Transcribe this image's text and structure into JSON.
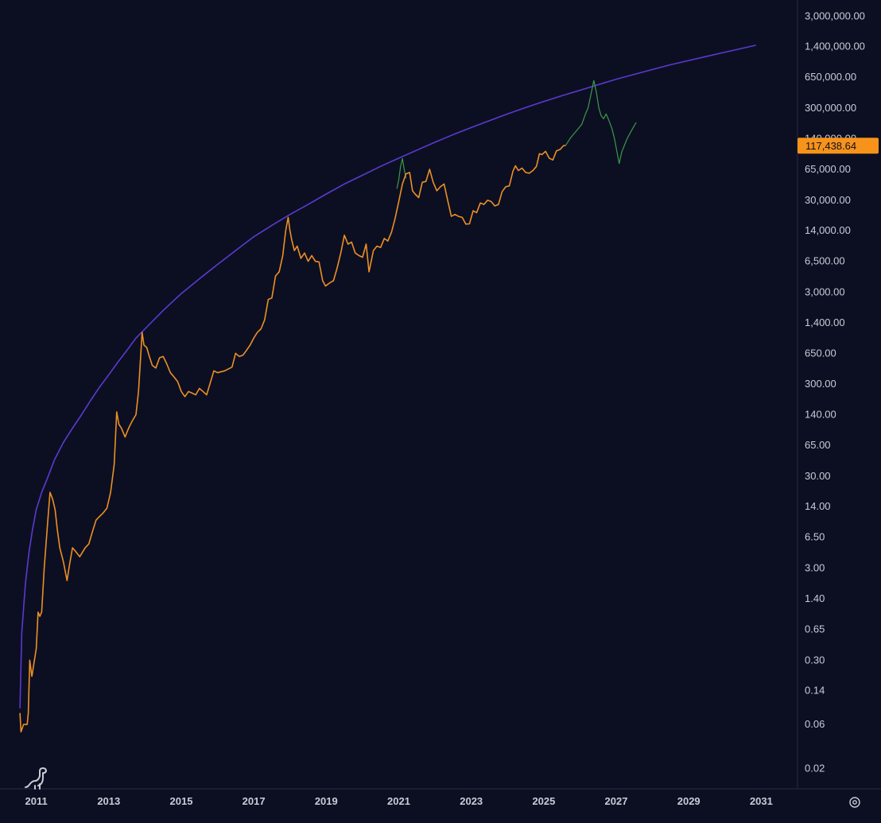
{
  "colors": {
    "background": "#0c0f22",
    "price_line": "#ed8f24",
    "projection_line": "#3c9a4a",
    "curve_line": "#5a3ad0",
    "axis_text": "#c9cbd6",
    "divider": "#2a2d3e",
    "price_tag_bg": "#f7931a",
    "price_tag_text": "#0c0f22"
  },
  "ui": {
    "logo_icon": "dinosaur-logo-icon",
    "settings_icon": "gear-icon"
  },
  "chart_data": {
    "type": "line",
    "title": "",
    "xlabel": "",
    "ylabel": "",
    "y_scale": "log",
    "grid": false,
    "legend": "none",
    "xlim": [
      2010.0,
      2032.0
    ],
    "ylim": [
      0.012,
      4500000
    ],
    "x_tick_labels": [
      "2011",
      "2013",
      "2015",
      "2017",
      "2019",
      "2021",
      "2023",
      "2025",
      "2027",
      "2029",
      "2031"
    ],
    "y_tick_labels": [
      "3,000,000.00",
      "1,400,000.00",
      "650,000.00",
      "300,000.00",
      "140,000.00",
      "65,000.00",
      "30,000.00",
      "14,000.00",
      "6,500.00",
      "3,000.00",
      "1,400.00",
      "650.00",
      "300.00",
      "140.00",
      "65.00",
      "30.00",
      "14.00",
      "6.50",
      "3.00",
      "1.40",
      "0.65",
      "0.30",
      "0.14",
      "0.06",
      "0.02"
    ],
    "last_price_label": "117,438.64",
    "last_price_value": 117438.64,
    "series": [
      {
        "kind": "price",
        "points": [
          [
            2010.55,
            0.08
          ],
          [
            2010.58,
            0.05
          ],
          [
            2010.65,
            0.06
          ],
          [
            2010.75,
            0.06
          ],
          [
            2010.78,
            0.08
          ],
          [
            2010.82,
            0.3
          ],
          [
            2010.88,
            0.2
          ],
          [
            2010.95,
            0.3
          ],
          [
            2011.0,
            0.4
          ],
          [
            2011.05,
            1.0
          ],
          [
            2011.1,
            0.9
          ],
          [
            2011.15,
            1.0
          ],
          [
            2011.22,
            3.0
          ],
          [
            2011.3,
            8.0
          ],
          [
            2011.38,
            20.0
          ],
          [
            2011.45,
            17.0
          ],
          [
            2011.52,
            13.0
          ],
          [
            2011.58,
            8.0
          ],
          [
            2011.65,
            5.0
          ],
          [
            2011.75,
            3.5
          ],
          [
            2011.85,
            2.2
          ],
          [
            2011.92,
            3.3
          ],
          [
            2012.0,
            5.0
          ],
          [
            2012.1,
            4.5
          ],
          [
            2012.2,
            4.0
          ],
          [
            2012.35,
            5.0
          ],
          [
            2012.45,
            5.5
          ],
          [
            2012.55,
            7.5
          ],
          [
            2012.65,
            10.0
          ],
          [
            2012.75,
            11.0
          ],
          [
            2012.85,
            12.0
          ],
          [
            2012.95,
            13.5
          ],
          [
            2013.05,
            20.0
          ],
          [
            2013.15,
            40.0
          ],
          [
            2013.22,
            150.0
          ],
          [
            2013.28,
            110.0
          ],
          [
            2013.35,
            100.0
          ],
          [
            2013.45,
            80.0
          ],
          [
            2013.55,
            100.0
          ],
          [
            2013.65,
            120.0
          ],
          [
            2013.75,
            140.0
          ],
          [
            2013.82,
            250.0
          ],
          [
            2013.88,
            600.0
          ],
          [
            2013.92,
            1100.0
          ],
          [
            2013.97,
            800.0
          ],
          [
            2014.05,
            750.0
          ],
          [
            2014.12,
            600.0
          ],
          [
            2014.2,
            480.0
          ],
          [
            2014.3,
            450.0
          ],
          [
            2014.4,
            580.0
          ],
          [
            2014.5,
            600.0
          ],
          [
            2014.6,
            500.0
          ],
          [
            2014.7,
            400.0
          ],
          [
            2014.8,
            360.0
          ],
          [
            2014.9,
            320.0
          ],
          [
            2015.0,
            250.0
          ],
          [
            2015.1,
            220.0
          ],
          [
            2015.2,
            250.0
          ],
          [
            2015.3,
            240.0
          ],
          [
            2015.4,
            230.0
          ],
          [
            2015.5,
            270.0
          ],
          [
            2015.6,
            250.0
          ],
          [
            2015.7,
            230.0
          ],
          [
            2015.8,
            310.0
          ],
          [
            2015.9,
            420.0
          ],
          [
            2016.0,
            400.0
          ],
          [
            2016.2,
            420.0
          ],
          [
            2016.4,
            460.0
          ],
          [
            2016.5,
            650.0
          ],
          [
            2016.6,
            600.0
          ],
          [
            2016.7,
            620.0
          ],
          [
            2016.8,
            700.0
          ],
          [
            2016.9,
            800.0
          ],
          [
            2017.0,
            950.0
          ],
          [
            2017.1,
            1100.0
          ],
          [
            2017.2,
            1200.0
          ],
          [
            2017.3,
            1500.0
          ],
          [
            2017.4,
            2500.0
          ],
          [
            2017.5,
            2600.0
          ],
          [
            2017.6,
            4500.0
          ],
          [
            2017.7,
            5000.0
          ],
          [
            2017.8,
            7500.0
          ],
          [
            2017.88,
            14000.0
          ],
          [
            2017.95,
            19500.0
          ],
          [
            2018.0,
            14000.0
          ],
          [
            2018.05,
            11000.0
          ],
          [
            2018.12,
            8500.0
          ],
          [
            2018.2,
            9500.0
          ],
          [
            2018.3,
            7000.0
          ],
          [
            2018.4,
            8000.0
          ],
          [
            2018.5,
            6500.0
          ],
          [
            2018.6,
            7500.0
          ],
          [
            2018.7,
            6500.0
          ],
          [
            2018.8,
            6400.0
          ],
          [
            2018.9,
            4000.0
          ],
          [
            2018.98,
            3500.0
          ],
          [
            2019.1,
            3800.0
          ],
          [
            2019.2,
            4000.0
          ],
          [
            2019.3,
            5500.0
          ],
          [
            2019.4,
            8000.0
          ],
          [
            2019.5,
            12500.0
          ],
          [
            2019.6,
            10000.0
          ],
          [
            2019.7,
            10500.0
          ],
          [
            2019.8,
            8000.0
          ],
          [
            2019.9,
            7500.0
          ],
          [
            2020.0,
            7200.0
          ],
          [
            2020.1,
            10000.0
          ],
          [
            2020.18,
            5000.0
          ],
          [
            2020.3,
            8500.0
          ],
          [
            2020.4,
            9500.0
          ],
          [
            2020.5,
            9200.0
          ],
          [
            2020.6,
            11500.0
          ],
          [
            2020.7,
            10800.0
          ],
          [
            2020.8,
            13500.0
          ],
          [
            2020.9,
            19000.0
          ],
          [
            2021.0,
            29000.0
          ],
          [
            2021.1,
            45000.0
          ],
          [
            2021.2,
            58000.0
          ],
          [
            2021.3,
            60000.0
          ],
          [
            2021.38,
            38000.0
          ],
          [
            2021.45,
            35000.0
          ],
          [
            2021.55,
            32000.0
          ],
          [
            2021.65,
            47000.0
          ],
          [
            2021.75,
            48000.0
          ],
          [
            2021.85,
            65000.0
          ],
          [
            2021.95,
            47000.0
          ],
          [
            2022.05,
            38000.0
          ],
          [
            2022.15,
            42000.0
          ],
          [
            2022.25,
            45000.0
          ],
          [
            2022.35,
            30000.0
          ],
          [
            2022.45,
            20000.0
          ],
          [
            2022.55,
            21000.0
          ],
          [
            2022.65,
            20000.0
          ],
          [
            2022.75,
            19500.0
          ],
          [
            2022.85,
            16500.0
          ],
          [
            2022.95,
            16600.0
          ],
          [
            2023.05,
            23000.0
          ],
          [
            2023.15,
            22000.0
          ],
          [
            2023.25,
            28000.0
          ],
          [
            2023.35,
            27000.0
          ],
          [
            2023.45,
            30000.0
          ],
          [
            2023.55,
            29000.0
          ],
          [
            2023.65,
            26000.0
          ],
          [
            2023.75,
            27000.0
          ],
          [
            2023.85,
            37000.0
          ],
          [
            2023.95,
            42000.0
          ],
          [
            2024.05,
            43000.0
          ],
          [
            2024.15,
            62000.0
          ],
          [
            2024.22,
            71000.0
          ],
          [
            2024.3,
            63000.0
          ],
          [
            2024.4,
            67000.0
          ],
          [
            2024.5,
            60000.0
          ],
          [
            2024.6,
            59000.0
          ],
          [
            2024.7,
            63000.0
          ],
          [
            2024.8,
            70000.0
          ],
          [
            2024.88,
            96000.0
          ],
          [
            2024.95,
            94000.0
          ],
          [
            2025.05,
            102000.0
          ],
          [
            2025.15,
            86000.0
          ],
          [
            2025.25,
            82000.0
          ],
          [
            2025.35,
            103000.0
          ],
          [
            2025.45,
            107000.0
          ],
          [
            2025.55,
            118000.0
          ],
          [
            2025.6,
            117438.64
          ]
        ]
      },
      {
        "kind": "projection",
        "points": [
          [
            2025.6,
            117438.64
          ],
          [
            2025.75,
            145000.0
          ],
          [
            2025.9,
            170000.0
          ],
          [
            2026.05,
            200000.0
          ],
          [
            2026.15,
            260000.0
          ],
          [
            2026.22,
            300000.0
          ],
          [
            2026.3,
            420000.0
          ],
          [
            2026.38,
            600000.0
          ],
          [
            2026.45,
            450000.0
          ],
          [
            2026.52,
            300000.0
          ],
          [
            2026.58,
            250000.0
          ],
          [
            2026.65,
            230000.0
          ],
          [
            2026.72,
            260000.0
          ],
          [
            2026.8,
            220000.0
          ],
          [
            2026.88,
            180000.0
          ],
          [
            2026.95,
            140000.0
          ],
          [
            2027.02,
            100000.0
          ],
          [
            2027.08,
            75000.0
          ],
          [
            2027.15,
            100000.0
          ],
          [
            2027.3,
            140000.0
          ],
          [
            2027.45,
            180000.0
          ],
          [
            2027.55,
            210000.0
          ]
        ]
      },
      {
        "kind": "projection",
        "points": [
          [
            2020.95,
            40000.0
          ],
          [
            2021.0,
            50000.0
          ],
          [
            2021.05,
            70000.0
          ],
          [
            2021.1,
            85000.0
          ],
          [
            2021.15,
            65000.0
          ],
          [
            2021.2,
            52000.0
          ]
        ]
      },
      {
        "kind": "curve",
        "points": [
          [
            2010.55,
            0.09
          ],
          [
            2010.6,
            0.6
          ],
          [
            2010.7,
            2.0
          ],
          [
            2010.8,
            4.5
          ],
          [
            2010.9,
            8.0
          ],
          [
            2011.0,
            13.0
          ],
          [
            2011.15,
            20.0
          ],
          [
            2011.3,
            28.0
          ],
          [
            2011.5,
            45.0
          ],
          [
            2011.75,
            70.0
          ],
          [
            2012.0,
            100.0
          ],
          [
            2012.25,
            140.0
          ],
          [
            2012.5,
            200.0
          ],
          [
            2012.75,
            280.0
          ],
          [
            2013.0,
            380.0
          ],
          [
            2013.25,
            520.0
          ],
          [
            2013.5,
            700.0
          ],
          [
            2013.75,
            950.0
          ],
          [
            2014.0,
            1200.0
          ],
          [
            2014.5,
            1900.0
          ],
          [
            2015.0,
            2900.0
          ],
          [
            2015.5,
            4200.0
          ],
          [
            2016.0,
            6000.0
          ],
          [
            2016.5,
            8500.0
          ],
          [
            2017.0,
            12000.0
          ],
          [
            2017.5,
            16000.0
          ],
          [
            2018.0,
            21000.0
          ],
          [
            2018.5,
            27000.0
          ],
          [
            2019.0,
            35000.0
          ],
          [
            2019.5,
            45000.0
          ],
          [
            2020.0,
            56000.0
          ],
          [
            2020.5,
            70000.0
          ],
          [
            2021.0,
            86000.0
          ],
          [
            2021.5,
            105000.0
          ],
          [
            2022.0,
            128000.0
          ],
          [
            2022.5,
            155000.0
          ],
          [
            2023.0,
            185000.0
          ],
          [
            2023.5,
            220000.0
          ],
          [
            2024.0,
            260000.0
          ],
          [
            2024.5,
            305000.0
          ],
          [
            2025.0,
            355000.0
          ],
          [
            2025.5,
            410000.0
          ],
          [
            2026.0,
            470000.0
          ],
          [
            2026.5,
            540000.0
          ],
          [
            2027.0,
            620000.0
          ],
          [
            2027.5,
            700000.0
          ],
          [
            2028.0,
            790000.0
          ],
          [
            2028.5,
            890000.0
          ],
          [
            2029.0,
            990000.0
          ],
          [
            2029.5,
            1100000.0
          ],
          [
            2030.0,
            1220000.0
          ],
          [
            2030.5,
            1350000.0
          ],
          [
            2030.85,
            1450000.0
          ]
        ]
      }
    ]
  }
}
